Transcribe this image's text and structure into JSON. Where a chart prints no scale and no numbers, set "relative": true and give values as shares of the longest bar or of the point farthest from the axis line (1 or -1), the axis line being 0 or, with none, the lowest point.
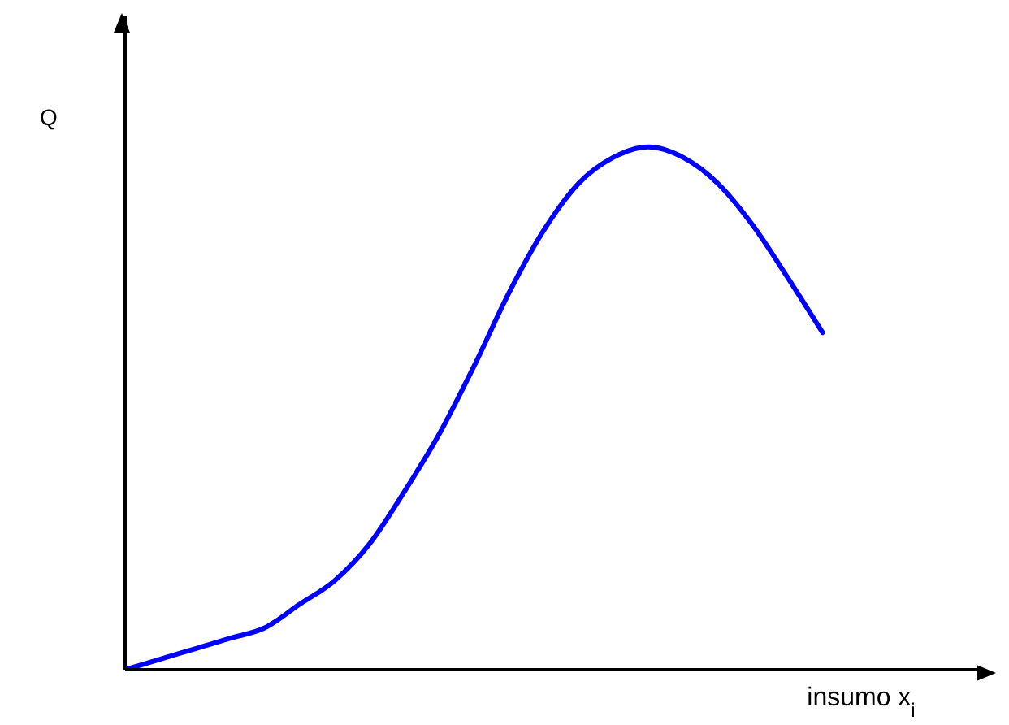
{
  "chart_data": {
    "type": "line",
    "relative": true,
    "xlabel": "insumo x$_{i}$",
    "ylabel": "Q",
    "categories": [
      null,
      null,
      null,
      null,
      null,
      null,
      null,
      null,
      null,
      null,
      null,
      null,
      null,
      null,
      null,
      null,
      null,
      null,
      null,
      null,
      null,
      null,
      null,
      null,
      null
    ],
    "series": [
      {
        "color": "#0000ff",
        "values": [
          0,
          0.02,
          0.04,
          0.06,
          0.08,
          0.125,
          0.17,
          0.24,
          0.34,
          0.45,
          0.58,
          0.72,
          0.84,
          0.93,
          0.98,
          1,
          0.98,
          0.93,
          0.85,
          0.75,
          0.645,
          null,
          null,
          null,
          null
        ]
      }
    ]
  }
}
